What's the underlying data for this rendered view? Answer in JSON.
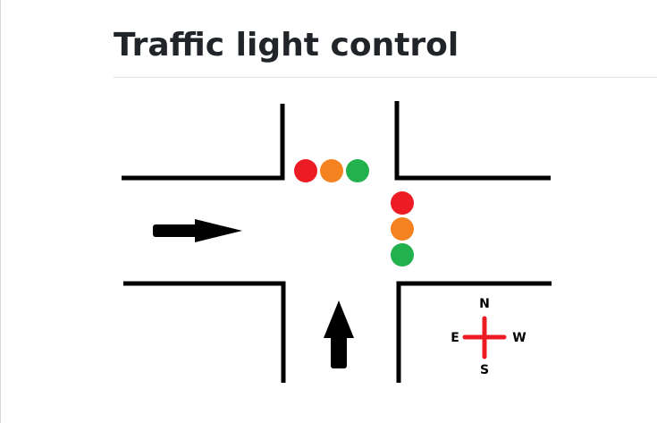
{
  "page": {
    "title": "Traffic light control"
  },
  "intersection": {
    "traffic_lights": {
      "horizontal": {
        "lights": [
          {
            "color_name": "red",
            "color": "#ed1c24"
          },
          {
            "color_name": "orange",
            "color": "#f58220"
          },
          {
            "color_name": "green",
            "color": "#22b14c"
          }
        ]
      },
      "vertical": {
        "lights": [
          {
            "color_name": "red",
            "color": "#ed1c24"
          },
          {
            "color_name": "orange",
            "color": "#f58220"
          },
          {
            "color_name": "green",
            "color": "#22b14c"
          }
        ]
      }
    },
    "arrows": [
      {
        "name": "eastbound-arrow-icon",
        "direction": "right"
      },
      {
        "name": "northbound-arrow-icon",
        "direction": "up"
      }
    ],
    "compass": {
      "north": "N",
      "south": "S",
      "east": "E",
      "west": "W",
      "color": "#ed1c24"
    }
  }
}
